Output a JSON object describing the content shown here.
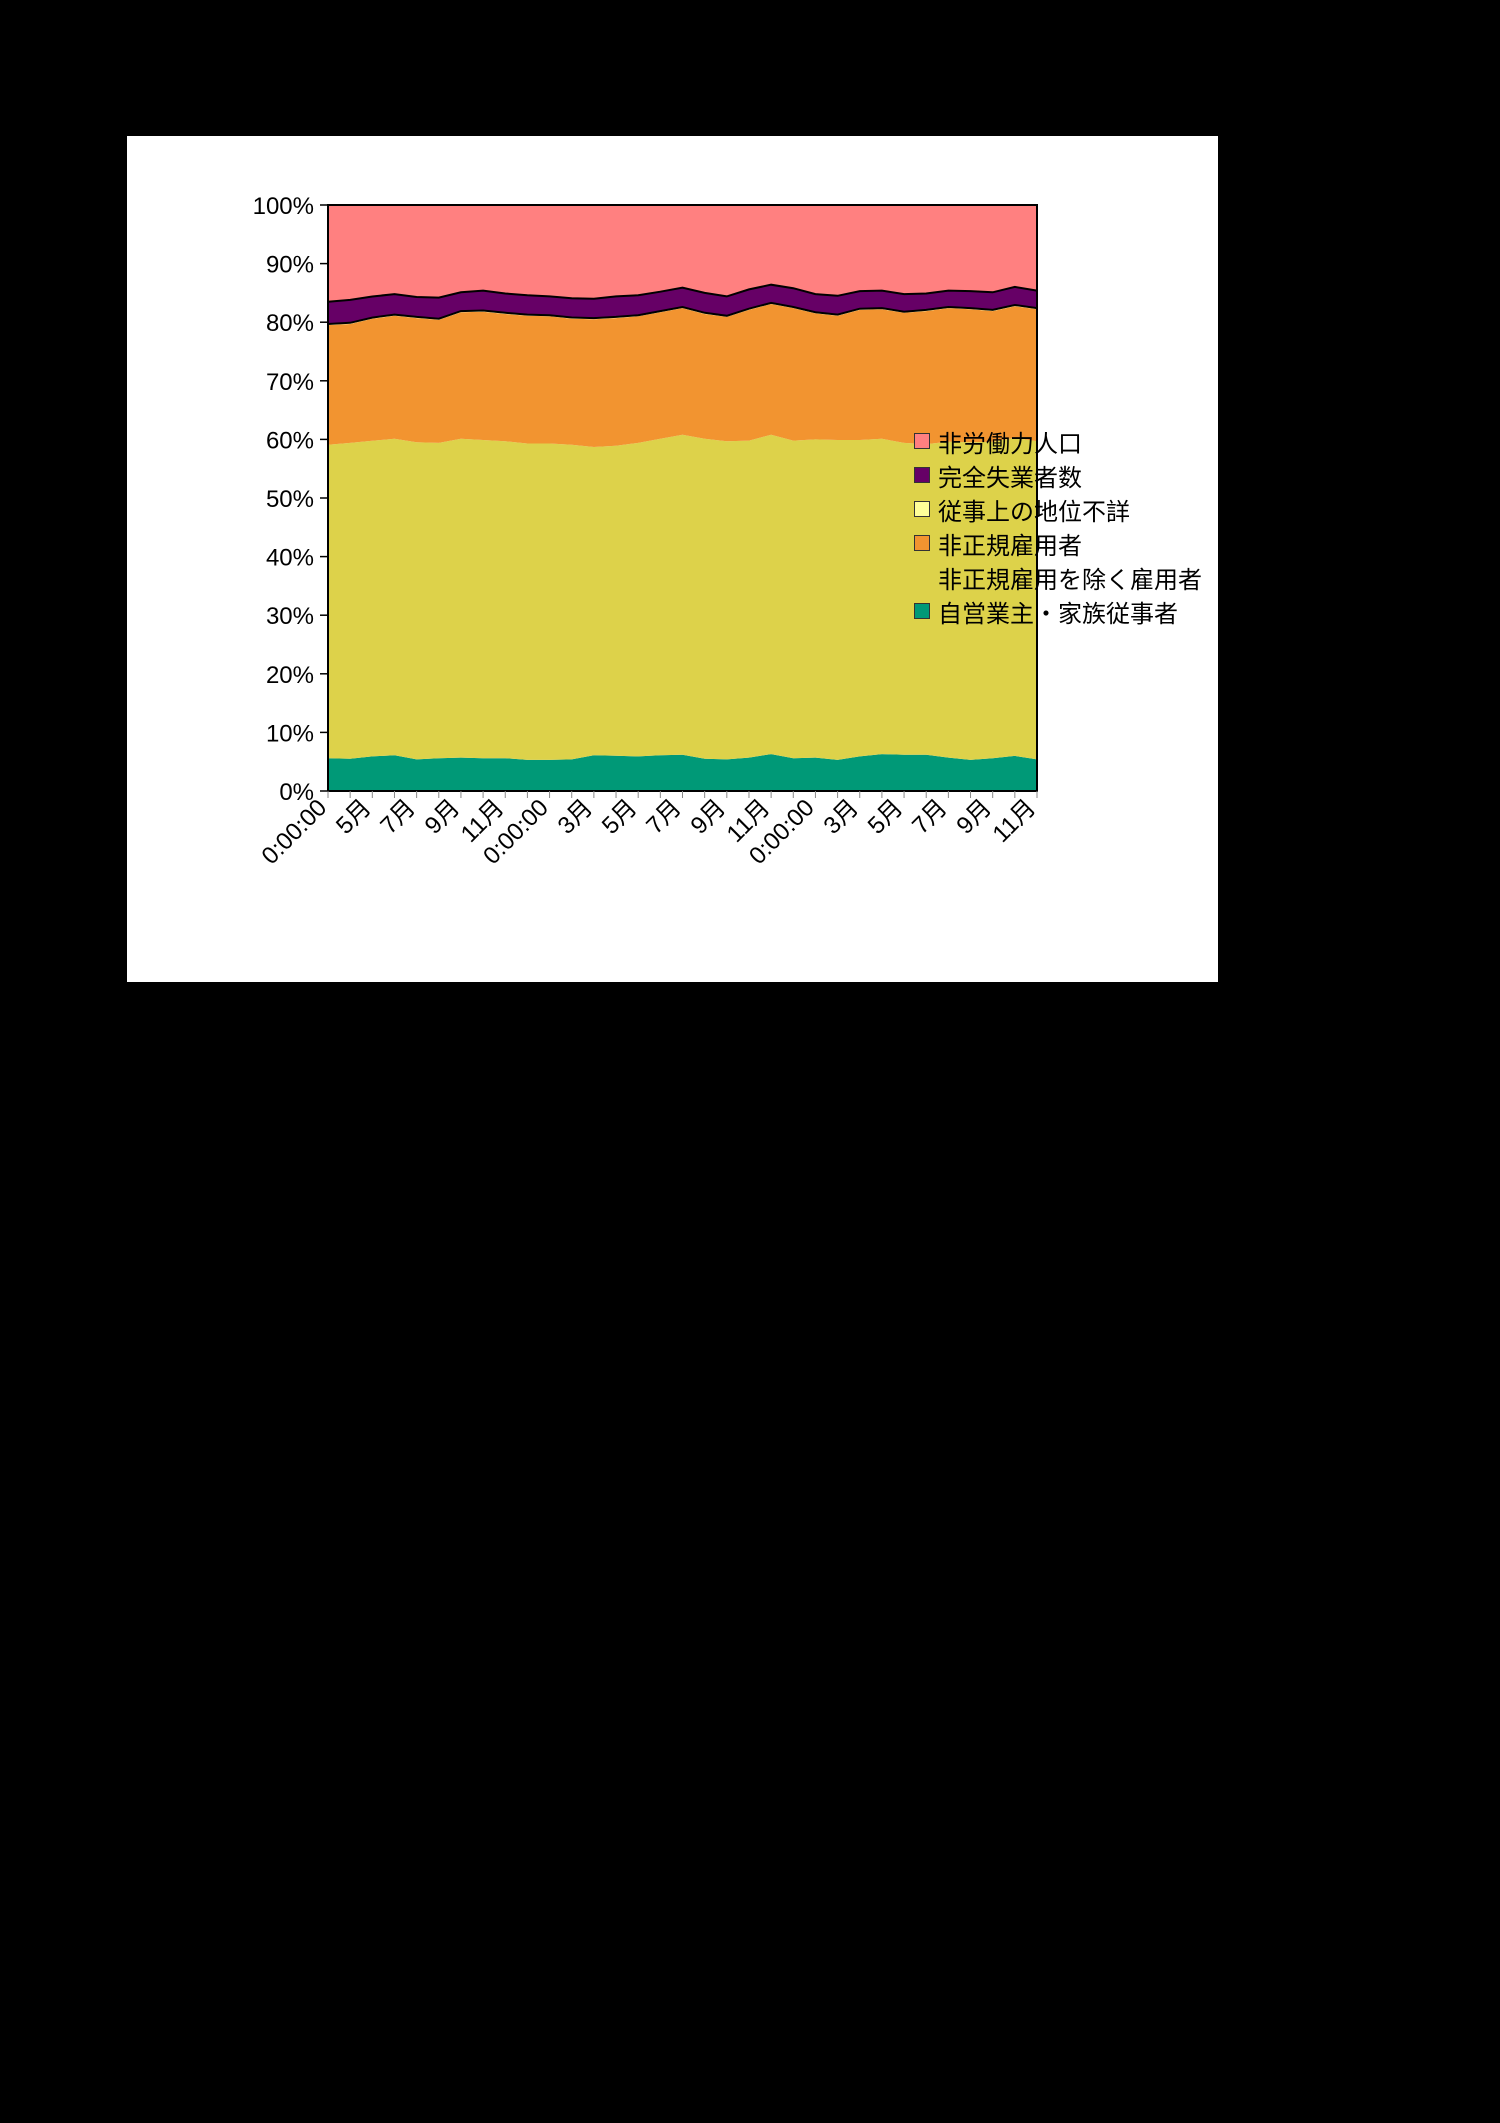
{
  "chart_data": {
    "type": "area",
    "stacked": true,
    "normalized": true,
    "x_tick_labels": [
      "0:00:00",
      "5月",
      "7月",
      "9月",
      "11月",
      "0:00:00",
      "3月",
      "5月",
      "7月",
      "9月",
      "11月",
      "0:00:00",
      "3月",
      "5月",
      "7月",
      "9月",
      "11月"
    ],
    "x_tick_index": [
      0,
      2,
      4,
      6,
      8,
      10,
      12,
      14,
      16,
      18,
      20,
      22,
      24,
      26,
      28,
      30,
      32
    ],
    "y_ticks": [
      "0%",
      "10%",
      "20%",
      "30%",
      "40%",
      "50%",
      "60%",
      "70%",
      "80%",
      "90%",
      "100%"
    ],
    "ylim": [
      0,
      100
    ],
    "legend_position": "right",
    "series": [
      {
        "name": "非労働力人口",
        "color": "#ff8080",
        "values": [
          16.5,
          16.2,
          15.6,
          15.2,
          15.7,
          15.8,
          14.9,
          14.6,
          15.1,
          15.4,
          15.6,
          15.9,
          16.0,
          15.6,
          15.4,
          14.8,
          14.1,
          15.0,
          15.6,
          14.4,
          13.6,
          14.2,
          15.2,
          15.5,
          14.7,
          14.6,
          15.2,
          15.1,
          14.6,
          14.7,
          14.9,
          14.0,
          14.6
        ]
      },
      {
        "name": "完全失業者数",
        "color": "#660066",
        "values": [
          3.8,
          3.9,
          3.6,
          3.5,
          3.4,
          3.6,
          3.2,
          3.4,
          3.3,
          3.3,
          3.2,
          3.3,
          3.3,
          3.5,
          3.4,
          3.3,
          3.3,
          3.4,
          3.3,
          3.3,
          3.1,
          3.2,
          3.1,
          3.2,
          3.0,
          3.0,
          3.0,
          2.8,
          2.8,
          2.9,
          3.0,
          3.1,
          3.0
        ]
      },
      {
        "name": "従事上の地位不詳",
        "color": "#ffff99",
        "values": [
          0.2,
          0.2,
          0.2,
          0.2,
          0.2,
          0.2,
          0.2,
          0.2,
          0.2,
          0.2,
          0.2,
          0.2,
          0.2,
          0.2,
          0.2,
          0.2,
          0.2,
          0.2,
          0.2,
          0.2,
          0.2,
          0.2,
          0.2,
          0.2,
          0.2,
          0.2,
          0.2,
          0.2,
          0.2,
          0.2,
          0.2,
          0.2,
          0.2
        ]
      },
      {
        "name": "非正規雇用者",
        "color": "#f29430",
        "values": [
          20.4,
          20.3,
          20.8,
          21.0,
          21.2,
          21.0,
          21.6,
          21.9,
          21.7,
          21.8,
          21.7,
          21.5,
          21.8,
          21.8,
          21.6,
          21.6,
          21.6,
          21.3,
          21.2,
          22.3,
          22.3,
          22.6,
          21.5,
          21.2,
          22.2,
          22.1,
          22.2,
          22.7,
          22.8,
          22.7,
          22.3,
          22.5,
          22.5
        ]
      },
      {
        "name": "非正規雇用を除く雇用者",
        "color": "#ddd24a",
        "values": [
          53.5,
          53.9,
          53.8,
          54.0,
          54.1,
          53.8,
          54.4,
          54.3,
          54.1,
          54.0,
          54.0,
          53.7,
          52.6,
          52.9,
          53.5,
          54.0,
          54.6,
          54.6,
          54.3,
          54.1,
          54.5,
          54.2,
          54.3,
          54.6,
          54.0,
          53.8,
          53.2,
          53.0,
          53.9,
          54.2,
          54.0,
          54.4,
          54.3
        ]
      },
      {
        "name": "自営業主・家族従事者",
        "color": "#009977",
        "values": [
          5.6,
          5.5,
          5.9,
          6.1,
          5.4,
          5.6,
          5.7,
          5.6,
          5.6,
          5.3,
          5.3,
          5.4,
          6.1,
          6.0,
          5.9,
          6.1,
          6.2,
          5.5,
          5.4,
          5.7,
          6.3,
          5.6,
          5.7,
          5.3,
          5.9,
          6.3,
          6.2,
          6.2,
          5.7,
          5.3,
          5.6,
          6.0,
          5.4
        ]
      }
    ]
  }
}
